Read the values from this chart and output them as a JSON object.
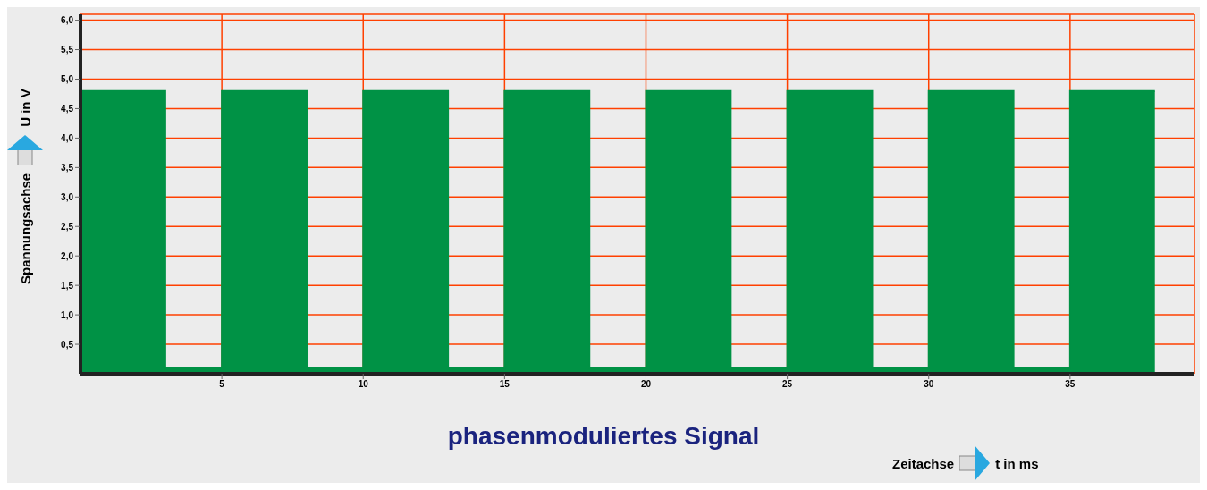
{
  "chart_data": {
    "type": "area",
    "title": "phasenmoduliertes Signal",
    "xlabel": "Zeitachse",
    "ylabel": "Spannungsachse",
    "annotations": [
      "t in ms",
      "U in V"
    ],
    "x": [
      0,
      3,
      3,
      5,
      5,
      8,
      8,
      10,
      10,
      13,
      13,
      15,
      15,
      18,
      18,
      20,
      20,
      23,
      23,
      25,
      25,
      28,
      28,
      30,
      30,
      33,
      33,
      35,
      35,
      38
    ],
    "series": [
      {
        "color": "#009245",
        "values": [
          4.8,
          4.8,
          0.1,
          0.1,
          4.8,
          4.8,
          0.1,
          0.1,
          4.8,
          4.8,
          0.1,
          0.1,
          4.8,
          4.8,
          0.1,
          0.1,
          4.8,
          4.8,
          0.1,
          0.1,
          4.8,
          4.8,
          0.1,
          0.1,
          4.8,
          4.8,
          0.1,
          0.1,
          4.8,
          4.8
        ]
      }
    ],
    "xlim": [
      0,
      39.4
    ],
    "ylim": [
      0,
      6.1
    ],
    "xticks": [
      5,
      10,
      15,
      20,
      25,
      30,
      35
    ],
    "yticks": [
      {
        "value": 0.5,
        "label": "0,5"
      },
      {
        "value": 1,
        "label": "1,0"
      },
      {
        "value": 1.5,
        "label": "1,5"
      },
      {
        "value": 2,
        "label": "2,0"
      },
      {
        "value": 2.5,
        "label": "2,5"
      },
      {
        "value": 3,
        "label": "3,0"
      },
      {
        "value": 3.5,
        "label": "3,5"
      },
      {
        "value": 4,
        "label": "4,0"
      },
      {
        "value": 4.5,
        "label": "4,5"
      },
      {
        "value": 5,
        "label": "5,0"
      },
      {
        "value": 5.5,
        "label": "5,5"
      },
      {
        "value": 6,
        "label": "6,0"
      }
    ],
    "grid": true
  }
}
